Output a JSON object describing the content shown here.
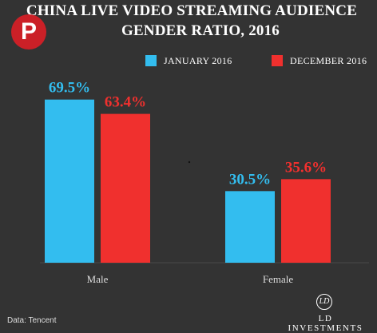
{
  "chart_data": {
    "type": "bar",
    "title_lines": [
      "CHINA  LIVE VIDEO STREAMING AUDIENCE",
      "GENDER RATIO, 2016"
    ],
    "categories": [
      "Male",
      "Female"
    ],
    "series": [
      {
        "name": "JANUARY 2016",
        "color": "#33bdef",
        "values": [
          69.5,
          30.5
        ],
        "labels": [
          "69.5%",
          "30.5%"
        ]
      },
      {
        "name": "DECEMBER 2016",
        "color": "#f0302e",
        "values": [
          63.4,
          35.6
        ],
        "labels": [
          "63.4%",
          "35.6%"
        ]
      }
    ],
    "ylim": [
      0,
      100
    ],
    "value_suffix": "%",
    "grid": false,
    "legend_position": "top-right"
  },
  "source": "Data: Tencent",
  "brand": {
    "monogram": "LD",
    "name": "LD INVESTMENTS",
    "icon": "pinterest-icon"
  },
  "colors": {
    "background": "#333333",
    "text": "#ffffff",
    "pinterest": "#cb2027"
  }
}
